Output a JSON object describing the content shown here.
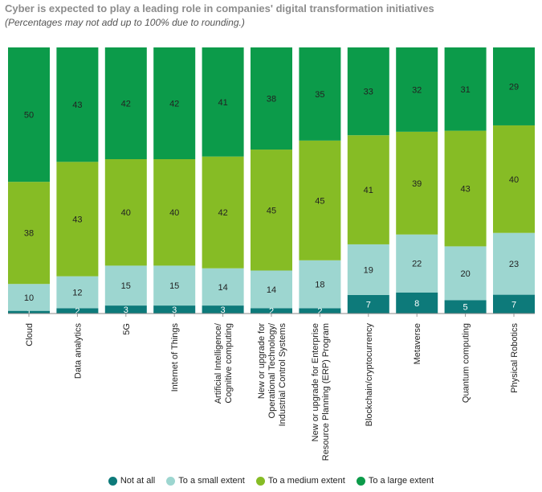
{
  "title": "Cyber is expected to play a leading role in companies' digital transformation initiatives",
  "subtitle": "(Percentages may not add up to 100% due to rounding.)",
  "chart_data": {
    "type": "bar",
    "stacked": true,
    "categories": [
      [
        "Cloud"
      ],
      [
        "Data analytics"
      ],
      [
        "5G"
      ],
      [
        "Internet of Things"
      ],
      [
        "Artificial Intelligence/",
        "Cognitive computing"
      ],
      [
        "New or upgrade for",
        "Operational Technology/",
        "Industrial Control Systems"
      ],
      [
        "New or upgrade for Enterprise",
        "Resource Planning (ERP) Program"
      ],
      [
        "Blockchain/cryptocurrency"
      ],
      [
        "Metaverse"
      ],
      [
        "Quantum computing"
      ],
      [
        "Physical Robotics"
      ]
    ],
    "series": [
      {
        "name": "Not at all",
        "color": "#0d7a7a",
        "values": [
          1,
          2,
          3,
          3,
          3,
          2,
          2,
          7,
          8,
          5,
          7
        ]
      },
      {
        "name": "To a small extent",
        "color": "#9dd6d0",
        "values": [
          10,
          12,
          15,
          15,
          14,
          14,
          18,
          19,
          22,
          20,
          23
        ]
      },
      {
        "name": "To a medium extent",
        "color": "#86bc25",
        "values": [
          38,
          43,
          40,
          40,
          42,
          45,
          45,
          41,
          39,
          43,
          40
        ]
      },
      {
        "name": "To a large extent",
        "color": "#0c9b4a",
        "values": [
          50,
          43,
          42,
          42,
          41,
          38,
          35,
          33,
          32,
          31,
          29
        ]
      }
    ],
    "ylim": [
      0,
      100
    ],
    "legend_position": "bottom",
    "grid": false
  }
}
